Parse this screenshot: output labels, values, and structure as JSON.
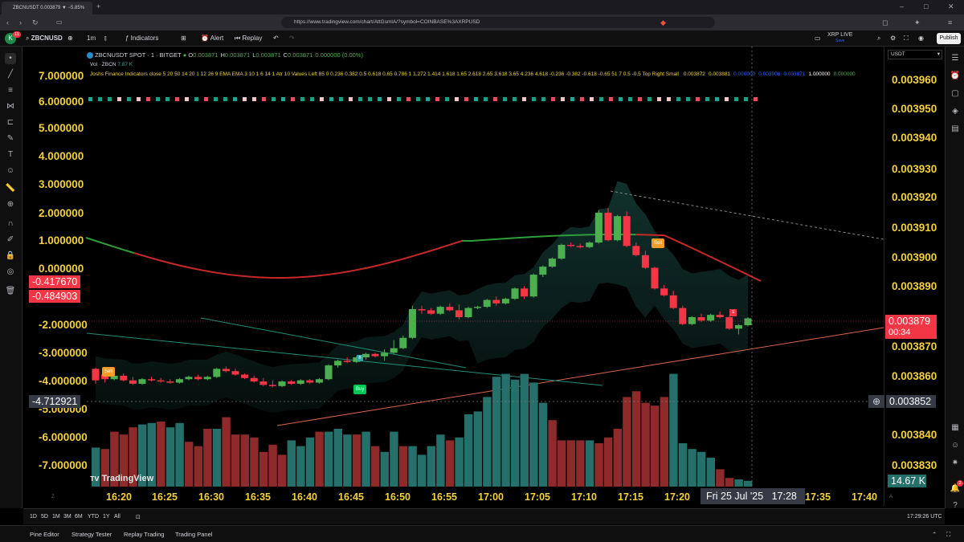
{
  "browser": {
    "tab_title": "ZBCNUSDT 0.003879 ▼ −5.85%",
    "url": "https://www.tradingview.com/chart/AttGsmlA/?symbol=COINBASE%3AXRPUSD"
  },
  "toolbar": {
    "symbol": "ZBCNUSD",
    "interval": "1m",
    "indicators_label": "Indicators",
    "alert_label": "Alert",
    "replay_label": "Replay",
    "layout_name": "XRP LIVE",
    "layout_status": "Save",
    "publish_label": "Publish",
    "avatar_letter": "K",
    "notif_count": "11"
  },
  "legend": {
    "title": "ZBCNUSDT SPOT · 1 · BITGET",
    "ohlc": [
      {
        "k": "O",
        "v": "0.003871"
      },
      {
        "k": "H",
        "v": "0.003871"
      },
      {
        "k": "L",
        "v": "0.003871"
      },
      {
        "k": "C",
        "v": "0.003871"
      },
      {
        "k": "",
        "v": "0.000000 (0.00%)"
      }
    ],
    "vol_label": "Vol · ZBCN",
    "vol_value": "7.87 K",
    "indicator_line": "Joshs Finance Indicators close 5 20 50 14 20 1 12 26 9 EMA EMA 3 10 1 6 14 1 Atr 10 Values Left 85 0 0.236 0.382 0.5 0.618 0.65 0.786 1 1.272 1.414 1.618 1.65 2.618 2.65 3.618 3.65 4.236 4.618 -0.236 -0.382 -0.618 -0.65 51 7 0.5 -0.5 Top Right Small",
    "indicator_values": [
      "0.003872",
      "0.003881",
      "0.000000",
      "0.003908",
      "0.003871",
      "1.000000",
      "0.000000"
    ]
  },
  "price_axis": {
    "currency": "USDT",
    "ticks": [
      "0.003960",
      "0.003950",
      "0.003940",
      "0.003930",
      "0.003920",
      "0.003910",
      "0.003900",
      "0.003890",
      "0.003870",
      "0.003860",
      "0.003840",
      "0.003830"
    ],
    "last_price": "0.003879",
    "countdown": "00:34",
    "crosshair_price": "0.003852",
    "volume_label": "14.67 K"
  },
  "indicator_axis": {
    "ticks": [
      "7.000000",
      "6.000000",
      "5.000000",
      "4.000000",
      "3.000000",
      "2.000000",
      "1.000000",
      "0.000000",
      "-2.000000",
      "-3.000000",
      "-4.000000",
      "-5.000000",
      "-6.000000",
      "-7.000000"
    ],
    "badge_1": "-0.417670",
    "badge_2": "-0.484903",
    "crosshair_value": "-4.712921"
  },
  "time_axis": {
    "labels": [
      "16:20",
      "16:25",
      "16:30",
      "16:35",
      "16:40",
      "16:45",
      "16:50",
      "16:55",
      "17:00",
      "17:05",
      "17:10",
      "17:15",
      "17:20",
      "17:35",
      "17:40"
    ],
    "crosshair_time": "Fri 25 Jul '25",
    "crosshair_clock": "17:28"
  },
  "signals": {
    "sell": "Sell",
    "buy": "Buy",
    "b": "B",
    "s": "S"
  },
  "watermark": "TradingView",
  "range_bar": {
    "ranges": [
      "1D",
      "5D",
      "1M",
      "3M",
      "6M",
      "YTD",
      "1Y",
      "All"
    ],
    "clock": "17:29:26 UTC"
  },
  "panels": {
    "tabs": [
      "Pine Editor",
      "Strategy Tester",
      "Replay Trading",
      "Trading Panel"
    ],
    "alerts_count": "2"
  },
  "colors": {
    "up": "#4caf50",
    "down": "#f23645",
    "vol_up": "#26706b",
    "vol_down": "#8e2a2a",
    "axis_text": "#f2d13b"
  },
  "candles": [
    [
      8.5,
      8.6,
      7.2,
      7.5
    ],
    [
      8.0,
      8.2,
      7.3,
      7.6
    ],
    [
      7.6,
      8.0,
      7.5,
      7.9
    ],
    [
      7.9,
      8.1,
      7.4,
      7.5
    ],
    [
      7.5,
      7.8,
      7.1,
      7.2
    ],
    [
      7.2,
      7.7,
      7.1,
      7.6
    ],
    [
      7.6,
      7.8,
      7.4,
      7.5
    ],
    [
      7.5,
      7.7,
      7.3,
      7.4
    ],
    [
      7.4,
      7.6,
      7.2,
      7.3
    ],
    [
      7.3,
      7.7,
      7.2,
      7.6
    ],
    [
      7.6,
      7.9,
      7.5,
      7.8
    ],
    [
      7.8,
      8.0,
      7.5,
      7.6
    ],
    [
      7.6,
      7.9,
      7.5,
      7.8
    ],
    [
      7.8,
      8.6,
      7.7,
      8.5
    ],
    [
      8.5,
      8.7,
      8.2,
      8.3
    ],
    [
      8.3,
      8.5,
      7.9,
      8.0
    ],
    [
      8.0,
      8.1,
      7.6,
      7.7
    ],
    [
      7.7,
      7.9,
      7.3,
      7.4
    ],
    [
      7.4,
      7.7,
      7.0,
      7.1
    ],
    [
      7.1,
      7.5,
      6.9,
      7.0
    ],
    [
      7.0,
      7.5,
      6.9,
      7.4
    ],
    [
      7.4,
      7.5,
      7.1,
      7.2
    ],
    [
      7.2,
      7.6,
      7.1,
      7.5
    ],
    [
      7.5,
      7.6,
      7.2,
      7.3
    ],
    [
      7.3,
      7.7,
      7.2,
      7.6
    ],
    [
      7.6,
      8.9,
      7.5,
      8.8
    ],
    [
      8.8,
      9.3,
      8.6,
      9.2
    ],
    [
      9.2,
      9.5,
      9.0,
      9.1
    ],
    [
      9.1,
      9.6,
      9.0,
      9.5
    ],
    [
      9.5,
      9.9,
      9.3,
      9.8
    ],
    [
      9.8,
      9.9,
      9.5,
      9.6
    ],
    [
      9.6,
      10.2,
      9.2,
      9.9
    ],
    [
      9.9,
      11.0,
      9.8,
      10.3
    ],
    [
      10.3,
      11.4,
      10.2,
      11.2
    ],
    [
      11.2,
      14.0,
      11.1,
      13.7
    ],
    [
      13.7,
      14.0,
      13.3,
      13.6
    ],
    [
      13.6,
      13.8,
      13.2,
      13.3
    ],
    [
      13.3,
      14.0,
      13.2,
      13.9
    ],
    [
      13.9,
      14.2,
      13.5,
      13.6
    ],
    [
      13.6,
      14.1,
      12.8,
      13.0
    ],
    [
      13.0,
      13.9,
      12.9,
      13.8
    ],
    [
      13.8,
      14.0,
      13.7,
      13.9
    ],
    [
      13.9,
      14.6,
      13.8,
      14.5
    ],
    [
      14.5,
      14.8,
      14.0,
      14.2
    ],
    [
      14.2,
      14.7,
      14.1,
      14.6
    ],
    [
      14.6,
      15.6,
      14.5,
      15.5
    ],
    [
      15.5,
      15.7,
      14.6,
      14.8
    ],
    [
      14.8,
      16.8,
      14.7,
      16.7
    ],
    [
      16.7,
      17.5,
      16.5,
      17.4
    ],
    [
      17.4,
      18.2,
      17.3,
      18.1
    ],
    [
      18.1,
      19.4,
      18.0,
      19.3
    ],
    [
      19.3,
      19.5,
      19.1,
      19.2
    ],
    [
      19.2,
      19.4,
      19.0,
      19.1
    ],
    [
      19.1,
      19.6,
      19.0,
      19.5
    ],
    [
      19.5,
      22.3,
      19.4,
      22.1
    ],
    [
      22.1,
      22.5,
      19.6,
      19.7
    ],
    [
      19.7,
      21.9,
      19.6,
      21.8
    ],
    [
      21.8,
      22.2,
      19.1,
      19.2
    ],
    [
      19.2,
      19.5,
      18.3,
      18.4
    ],
    [
      18.4,
      18.8,
      17.2,
      17.3
    ],
    [
      17.3,
      17.4,
      15.4,
      15.5
    ],
    [
      15.5,
      15.8,
      14.8,
      14.9
    ],
    [
      14.9,
      15.3,
      13.7,
      13.8
    ],
    [
      13.8,
      14.0,
      12.3,
      12.4
    ],
    [
      12.4,
      13.1,
      12.3,
      13.0
    ],
    [
      13.0,
      13.3,
      12.6,
      12.7
    ],
    [
      12.7,
      13.3,
      12.6,
      13.2
    ],
    [
      13.2,
      13.5,
      12.9,
      13.0
    ],
    [
      13.0,
      13.1,
      11.9,
      12.0
    ],
    [
      12.0,
      12.4,
      11.5,
      12.3
    ],
    [
      12.3,
      13.0,
      12.2,
      12.9
    ]
  ],
  "volumes": [
    [
      0.27,
      1
    ],
    [
      0.26,
      0
    ],
    [
      0.38,
      0
    ],
    [
      0.36,
      0
    ],
    [
      0.41,
      0
    ],
    [
      0.43,
      1
    ],
    [
      0.44,
      1
    ],
    [
      0.45,
      0
    ],
    [
      0.41,
      1
    ],
    [
      0.44,
      1
    ],
    [
      0.31,
      0
    ],
    [
      0.28,
      0
    ],
    [
      0.4,
      0
    ],
    [
      0.4,
      1
    ],
    [
      0.48,
      0
    ],
    [
      0.36,
      0
    ],
    [
      0.36,
      0
    ],
    [
      0.34,
      0
    ],
    [
      0.24,
      0
    ],
    [
      0.29,
      0
    ],
    [
      0.22,
      0
    ],
    [
      0.32,
      1
    ],
    [
      0.28,
      1
    ],
    [
      0.34,
      1
    ],
    [
      0.38,
      0
    ],
    [
      0.38,
      1
    ],
    [
      0.4,
      1
    ],
    [
      0.36,
      1
    ],
    [
      0.36,
      0
    ],
    [
      0.38,
      1
    ],
    [
      0.28,
      0
    ],
    [
      0.24,
      1
    ],
    [
      0.38,
      1
    ],
    [
      0.28,
      0
    ],
    [
      0.28,
      1
    ],
    [
      0.22,
      1
    ],
    [
      0.28,
      1
    ],
    [
      0.36,
      1
    ],
    [
      0.32,
      0
    ],
    [
      0.34,
      1
    ],
    [
      0.5,
      1
    ],
    [
      0.52,
      1
    ],
    [
      0.62,
      1
    ],
    [
      0.76,
      1
    ],
    [
      0.78,
      1
    ],
    [
      0.74,
      1
    ],
    [
      0.78,
      1
    ],
    [
      0.72,
      1
    ],
    [
      0.58,
      1
    ],
    [
      0.46,
      0
    ],
    [
      0.32,
      0
    ],
    [
      0.32,
      0
    ],
    [
      0.32,
      0
    ],
    [
      0.32,
      1
    ],
    [
      0.3,
      0
    ],
    [
      0.34,
      0
    ],
    [
      0.4,
      0
    ],
    [
      0.62,
      0
    ],
    [
      0.66,
      0
    ],
    [
      0.58,
      0
    ],
    [
      0.56,
      0
    ],
    [
      0.62,
      0
    ],
    [
      0.78,
      1
    ],
    [
      0.3,
      1
    ],
    [
      0.26,
      1
    ],
    [
      0.24,
      1
    ],
    [
      0.2,
      1
    ],
    [
      0.12,
      0
    ],
    [
      0.06,
      0
    ],
    [
      0.05,
      1
    ],
    [
      0.04,
      1
    ]
  ]
}
